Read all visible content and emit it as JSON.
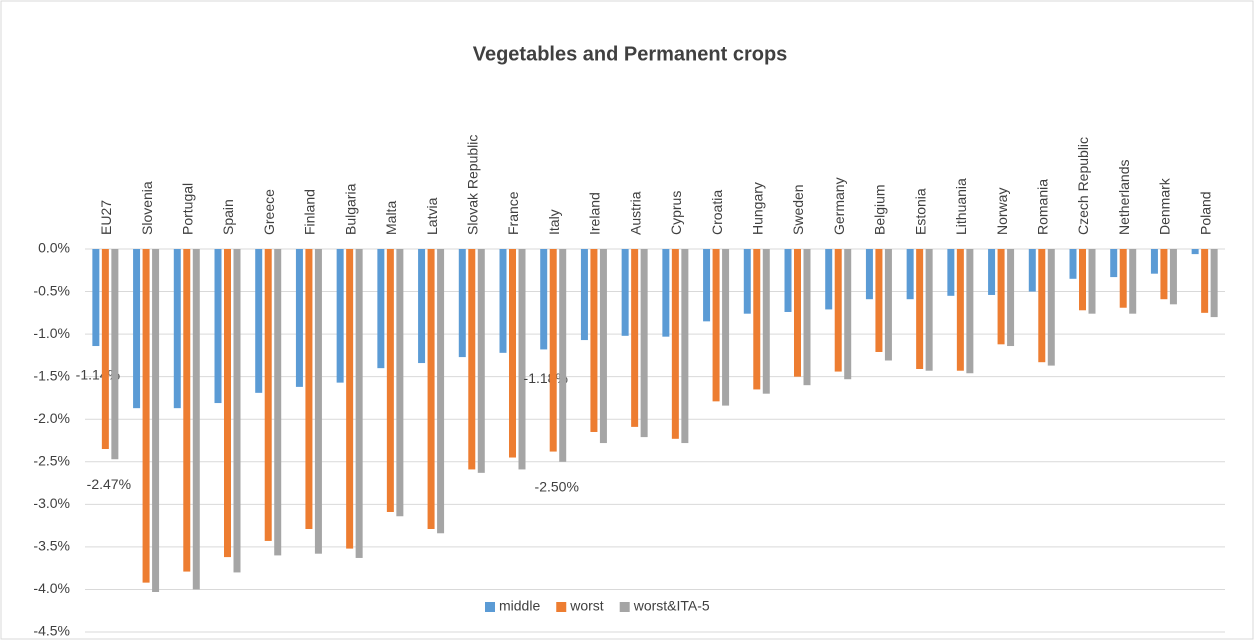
{
  "chart_data": {
    "type": "bar",
    "title": "Vegetables and Permanent crops",
    "categories": [
      "EU27",
      "Slovenia",
      "Portugal",
      "Spain",
      "Greece",
      "Finland",
      "Bulgaria",
      "Malta",
      "Latvia",
      "Slovak Republic",
      "France",
      "Italy",
      "Ireland",
      "Austria",
      "Cyprus",
      "Croatia",
      "Hungary",
      "Sweden",
      "Germany",
      "Belgium",
      "Estonia",
      "Lithuania",
      "Norway",
      "Romania",
      "Czech Republic",
      "Netherlands",
      "Denmark",
      "Poland"
    ],
    "series": [
      {
        "name": "middle",
        "color": "#5b9bd5",
        "values": [
          -1.14,
          -1.87,
          -1.87,
          -1.81,
          -1.69,
          -1.62,
          -1.57,
          -1.4,
          -1.34,
          -1.27,
          -1.22,
          -1.18,
          -1.07,
          -1.02,
          -1.03,
          -0.85,
          -0.76,
          -0.74,
          -0.71,
          -0.59,
          -0.59,
          -0.55,
          -0.54,
          -0.5,
          -0.35,
          -0.33,
          -0.29,
          -0.06
        ],
        "value_labels": [
          "-1.14%",
          null,
          null,
          null,
          null,
          null,
          null,
          null,
          null,
          null,
          null,
          "-1.18%",
          null,
          null,
          null,
          null,
          null,
          null,
          null,
          null,
          null,
          null,
          null,
          null,
          null,
          null,
          null,
          null
        ]
      },
      {
        "name": "worst",
        "color": "#ed7d31",
        "values": [
          -2.35,
          -3.92,
          -3.79,
          -3.62,
          -3.43,
          -3.29,
          -3.52,
          -3.09,
          -3.29,
          -2.59,
          -2.45,
          -2.38,
          -2.15,
          -2.09,
          -2.23,
          -1.79,
          -1.65,
          -1.5,
          -1.44,
          -1.21,
          -1.41,
          -1.43,
          -1.12,
          -1.33,
          -0.72,
          -0.69,
          -0.59,
          -0.75
        ]
      },
      {
        "name": "worst&ITA-5",
        "color": "#a5a5a5",
        "values": [
          -2.47,
          -4.03,
          -4.0,
          -3.8,
          -3.6,
          -3.58,
          -3.63,
          -3.14,
          -3.34,
          -2.63,
          -2.59,
          -2.5,
          -2.28,
          -2.21,
          -2.28,
          -1.84,
          -1.7,
          -1.6,
          -1.53,
          -1.31,
          -1.43,
          -1.46,
          -1.14,
          -1.37,
          -0.76,
          -0.76,
          -0.65,
          -0.8
        ],
        "value_labels": [
          "-2.47%",
          null,
          null,
          null,
          null,
          null,
          null,
          null,
          null,
          null,
          null,
          "-2.50%",
          null,
          null,
          null,
          null,
          null,
          null,
          null,
          null,
          null,
          null,
          null,
          null,
          null,
          null,
          null,
          null
        ]
      }
    ],
    "ylim": [
      -4.5,
      0
    ],
    "yticks": [
      {
        "value": 0,
        "label": "0.0%"
      },
      {
        "value": -0.5,
        "label": "-0.5%"
      },
      {
        "value": -1,
        "label": "-1.0%"
      },
      {
        "value": -1.5,
        "label": "-1.5%"
      },
      {
        "value": -2,
        "label": "-2.0%"
      },
      {
        "value": -2.5,
        "label": "-2.5%"
      },
      {
        "value": -3,
        "label": "-3.0%"
      },
      {
        "value": -3.5,
        "label": "-3.5%"
      },
      {
        "value": -4,
        "label": "-4.0%"
      },
      {
        "value": -4.5,
        "label": "-4.5%"
      }
    ],
    "grid": true,
    "legend": "bottom"
  }
}
